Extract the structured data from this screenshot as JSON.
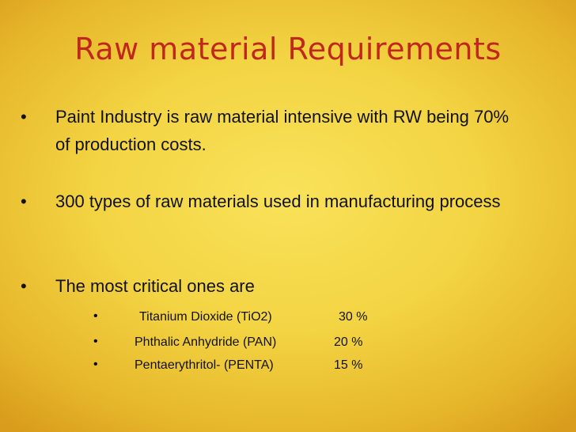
{
  "title": "Raw material Requirements",
  "bullets": [
    {
      "text": "Paint Industry is raw material intensive with RW being 70% of production costs."
    },
    {
      "text": "300 types of raw materials used in manufacturing process"
    },
    {
      "text": "The most critical ones are",
      "items": [
        {
          "name": "Titanium Dioxide (TiO2)",
          "share": "30 %"
        },
        {
          "name": "Phthalic Anhydride (PAN)",
          "share": "20 %"
        },
        {
          "name": "Pentaerythritol- (PENTA)",
          "share": "15 %"
        }
      ]
    }
  ]
}
